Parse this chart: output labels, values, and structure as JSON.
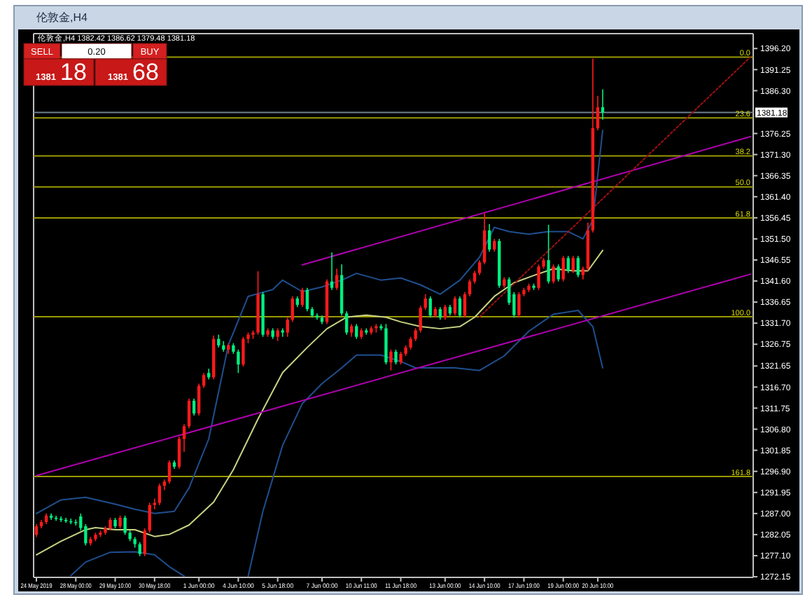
{
  "chart_data": {
    "type": "candlestick",
    "title": "伦敦金,H4",
    "subtitle": "伦敦金,H4  1382.42 1386.62 1379.48 1381.18",
    "categories": [
      "24 May 2019",
      null,
      null,
      null,
      null,
      null,
      null,
      null,
      "28 May 00:00",
      null,
      null,
      null,
      null,
      null,
      null,
      null,
      "29 May 10:00",
      null,
      null,
      null,
      null,
      null,
      null,
      null,
      "30 May 18:00",
      null,
      null,
      null,
      null,
      null,
      null,
      null,
      null,
      "1 Jun 00:00",
      null,
      null,
      null,
      null,
      null,
      null,
      null,
      "4 Jun 10:00",
      null,
      null,
      null,
      null,
      null,
      null,
      null,
      "5 Jun 18:00",
      null,
      null,
      null,
      null,
      null,
      null,
      null,
      null,
      "7 Jun 00:00",
      null,
      null,
      null,
      null,
      null,
      null,
      null,
      "10 Jun 11:00",
      null,
      null,
      null,
      null,
      null,
      null,
      null,
      "11 Jun 18:00",
      null,
      null,
      null,
      null,
      null,
      null,
      null,
      null,
      "13 Jun 00:00",
      null,
      null,
      null,
      null,
      null,
      null,
      null,
      "14 Jun 10:00",
      null,
      null,
      null,
      null,
      null,
      null,
      null,
      "17 Jun 19:00",
      null,
      null,
      null,
      null,
      null,
      null,
      null,
      "19 Jun 00:00",
      null,
      null,
      null,
      null,
      null,
      null,
      "20 Jun 10:00",
      null,
      null,
      null,
      null,
      null,
      null,
      null,
      null,
      null,
      null,
      null,
      null,
      null,
      null,
      null,
      null,
      null,
      null,
      null,
      null,
      null,
      null,
      null,
      null,
      null,
      null,
      null,
      null,
      null,
      null,
      null
    ],
    "ohlc": [
      [
        1282.0,
        1284.5,
        1281.5,
        1284.0
      ],
      [
        1284.0,
        1285.5,
        1283.5,
        1285.0
      ],
      [
        1285.0,
        1287.0,
        1284.5,
        1286.5
      ],
      [
        1286.5,
        1287.0,
        1285.5,
        1286.0
      ],
      [
        1286.0,
        1286.5,
        1285.3,
        1285.8
      ],
      [
        1285.8,
        1286.3,
        1285.0,
        1285.5
      ],
      [
        1285.5,
        1286.0,
        1284.8,
        1285.2
      ],
      [
        1285.2,
        1285.8,
        1284.5,
        1285.0
      ],
      [
        1285.0,
        1285.6,
        1284.2,
        1284.8
      ],
      [
        1286.3,
        1287.0,
        1283.0,
        1283.6
      ],
      [
        1284.0,
        1284.5,
        1279.5,
        1280.0
      ],
      [
        1280.0,
        1281.5,
        1279.5,
        1281.0
      ],
      [
        1281.0,
        1282.5,
        1280.5,
        1282.0
      ],
      [
        1282.0,
        1283.0,
        1281.5,
        1282.5
      ],
      [
        1282.5,
        1284.0,
        1282.0,
        1283.5
      ],
      [
        1283.5,
        1286.0,
        1283.0,
        1285.5
      ],
      [
        1285.5,
        1286.0,
        1283.5,
        1284.0
      ],
      [
        1284.0,
        1286.5,
        1283.5,
        1286.0
      ],
      [
        1286.0,
        1286.5,
        1282.0,
        1282.5
      ],
      [
        1282.5,
        1283.0,
        1280.5,
        1281.0
      ],
      [
        1281.0,
        1281.5,
        1279.0,
        1279.8
      ],
      [
        1279.8,
        1280.3,
        1277.0,
        1277.5
      ],
      [
        1277.5,
        1283.5,
        1277.0,
        1283.0
      ],
      [
        1283.0,
        1289.5,
        1282.5,
        1289.0
      ],
      [
        1289.0,
        1290.5,
        1288.0,
        1289.5
      ],
      [
        1289.5,
        1294.0,
        1289.0,
        1293.5
      ],
      [
        1293.5,
        1295.0,
        1292.5,
        1294.5
      ],
      [
        1294.5,
        1299.5,
        1294.0,
        1299.0
      ],
      [
        1299.0,
        1299.5,
        1297.5,
        1298.0
      ],
      [
        1298.0,
        1305.0,
        1297.5,
        1304.5
      ],
      [
        1304.5,
        1308.0,
        1301.5,
        1307.5
      ],
      [
        1307.5,
        1314.0,
        1307.0,
        1313.5
      ],
      [
        1313.5,
        1314.0,
        1310.0,
        1310.5
      ],
      [
        1310.5,
        1317.5,
        1310.0,
        1317.0
      ],
      [
        1317.0,
        1320.0,
        1316.5,
        1319.5
      ],
      [
        1320.0,
        1321.0,
        1318.5,
        1319.0
      ],
      [
        1319.0,
        1328.8,
        1318.5,
        1328.0
      ],
      [
        1328.0,
        1329.0,
        1326.0,
        1326.5
      ],
      [
        1326.5,
        1327.5,
        1325.0,
        1325.5
      ],
      [
        1325.5,
        1327.0,
        1324.5,
        1326.5
      ],
      [
        1326.5,
        1327.0,
        1324.5,
        1325.0
      ],
      [
        1325.0,
        1325.5,
        1320.0,
        1322.0
      ],
      [
        1322.0,
        1328.5,
        1321.5,
        1328.0
      ],
      [
        1328.0,
        1329.5,
        1327.0,
        1329.0
      ],
      [
        1329.0,
        1330.0,
        1328.0,
        1329.5
      ],
      [
        1329.5,
        1343.9,
        1329.0,
        1338.5
      ],
      [
        1338.5,
        1339.0,
        1328.5,
        1329.0
      ],
      [
        1329.0,
        1330.5,
        1328.5,
        1330.0
      ],
      [
        1330.0,
        1330.5,
        1328.0,
        1328.5
      ],
      [
        1328.5,
        1330.5,
        1327.5,
        1330.0
      ],
      [
        1330.0,
        1330.5,
        1328.5,
        1329.5
      ],
      [
        1329.5,
        1333.0,
        1328.5,
        1332.5
      ],
      [
        1332.5,
        1338.0,
        1332.0,
        1337.5
      ],
      [
        1337.5,
        1338.0,
        1335.5,
        1336.0
      ],
      [
        1336.0,
        1340.0,
        1335.5,
        1339.5
      ],
      [
        1339.5,
        1340.0,
        1334.5,
        1335.0
      ],
      [
        1335.0,
        1335.5,
        1333.0,
        1333.5
      ],
      [
        1333.5,
        1334.0,
        1332.5,
        1333.0
      ],
      [
        1333.0,
        1333.5,
        1331.5,
        1332.0
      ],
      [
        1332.0,
        1342.0,
        1331.5,
        1341.5
      ],
      [
        1341.5,
        1348.3,
        1339.5,
        1340.0
      ],
      [
        1340.0,
        1344.5,
        1339.5,
        1343.0
      ],
      [
        1343.0,
        1345.5,
        1333.5,
        1334.0
      ],
      [
        1334.0,
        1334.5,
        1329.0,
        1329.5
      ],
      [
        1329.5,
        1331.5,
        1328.5,
        1331.0
      ],
      [
        1331.0,
        1331.5,
        1328.0,
        1328.5
      ],
      [
        1328.5,
        1330.5,
        1328.0,
        1330.0
      ],
      [
        1330.0,
        1330.5,
        1329.0,
        1329.5
      ],
      [
        1329.5,
        1331.0,
        1329.0,
        1330.5
      ],
      [
        1330.5,
        1331.5,
        1329.5,
        1331.0
      ],
      [
        1331.0,
        1331.5,
        1330.0,
        1330.5
      ],
      [
        1330.5,
        1331.5,
        1322.0,
        1322.5
      ],
      [
        1322.5,
        1325.5,
        1320.6,
        1325.0
      ],
      [
        1325.0,
        1325.5,
        1322.0,
        1322.5
      ],
      [
        1322.5,
        1325.0,
        1322.0,
        1324.5
      ],
      [
        1324.5,
        1326.5,
        1324.0,
        1326.0
      ],
      [
        1326.0,
        1328.5,
        1325.5,
        1328.0
      ],
      [
        1328.0,
        1330.5,
        1327.5,
        1330.0
      ],
      [
        1330.0,
        1335.8,
        1329.5,
        1335.3
      ],
      [
        1335.3,
        1338.5,
        1334.8,
        1337.5
      ],
      [
        1337.5,
        1338.0,
        1333.0,
        1333.5
      ],
      [
        1333.5,
        1335.5,
        1333.0,
        1335.0
      ],
      [
        1335.0,
        1335.5,
        1332.5,
        1333.0
      ],
      [
        1333.0,
        1336.0,
        1332.5,
        1335.5
      ],
      [
        1335.5,
        1336.0,
        1333.5,
        1334.0
      ],
      [
        1334.0,
        1338.0,
        1333.5,
        1337.5
      ],
      [
        1337.5,
        1338.0,
        1333.0,
        1333.5
      ],
      [
        1333.5,
        1339.0,
        1333.0,
        1338.5
      ],
      [
        1338.5,
        1342.0,
        1338.0,
        1341.5
      ],
      [
        1341.5,
        1344.0,
        1341.0,
        1343.5
      ],
      [
        1343.5,
        1346.5,
        1343.0,
        1346.0
      ],
      [
        1346.0,
        1357.5,
        1345.5,
        1353.5
      ],
      [
        1353.5,
        1355.0,
        1348.5,
        1349.0
      ],
      [
        1349.0,
        1351.5,
        1348.5,
        1351.0
      ],
      [
        1351.0,
        1351.5,
        1340.0,
        1340.5
      ],
      [
        1340.5,
        1342.5,
        1340.0,
        1342.0
      ],
      [
        1342.0,
        1342.5,
        1336.0,
        1336.5
      ],
      [
        1338.5,
        1339.0,
        1333.0,
        1333.6
      ],
      [
        1333.6,
        1339.0,
        1333.0,
        1338.5
      ],
      [
        1338.5,
        1340.0,
        1338.0,
        1339.5
      ],
      [
        1339.5,
        1341.0,
        1339.0,
        1340.5
      ],
      [
        1340.5,
        1341.0,
        1339.5,
        1340.0
      ],
      [
        1340.0,
        1345.5,
        1339.5,
        1345.0
      ],
      [
        1345.0,
        1347.0,
        1344.5,
        1346.5
      ],
      [
        1346.5,
        1354.8,
        1341.0,
        1341.5
      ],
      [
        1341.5,
        1345.5,
        1341.0,
        1345.0
      ],
      [
        1345.0,
        1345.5,
        1341.5,
        1342.0
      ],
      [
        1342.0,
        1347.5,
        1341.5,
        1347.0
      ],
      [
        1347.0,
        1347.5,
        1343.5,
        1344.0
      ],
      [
        1344.0,
        1347.5,
        1343.5,
        1347.0
      ],
      [
        1347.0,
        1347.5,
        1342.5,
        1343.0
      ],
      [
        1343.0,
        1345.0,
        1342.0,
        1344.5
      ],
      [
        1344.5,
        1355.3,
        1344.0,
        1353.5
      ],
      [
        1353.5,
        1393.8,
        1353.0,
        1377.5
      ],
      [
        1377.5,
        1385.1,
        1377.0,
        1382.4
      ],
      [
        1382.42,
        1386.62,
        1379.48,
        1381.18
      ],
      null,
      null,
      null,
      null,
      null,
      null,
      null,
      null,
      null,
      null,
      null,
      null,
      null,
      null,
      null,
      null,
      null,
      null,
      null,
      null,
      null,
      null,
      null,
      null,
      null,
      null,
      null,
      null,
      null,
      null
    ],
    "series": [
      {
        "type": "line",
        "color": "#c8d282",
        "values": [
          1277.3,
          null,
          null,
          null,
          null,
          1280.5,
          null,
          null,
          null,
          null,
          1283.2,
          null,
          1283.7,
          null,
          null,
          null,
          1283.2,
          null,
          null,
          null,
          1283.2,
          null,
          null,
          null,
          1281.6,
          null,
          null,
          1282.1,
          null,
          null,
          null,
          1284.3,
          null,
          null,
          null,
          null,
          1289.7,
          null,
          null,
          null,
          1297.3,
          null,
          null,
          null,
          null,
          1309.2,
          null,
          null,
          null,
          null,
          1320.1,
          null,
          null,
          null,
          null,
          1326.0,
          null,
          null,
          null,
          1330.4,
          null,
          null,
          null,
          1333.1,
          null,
          null,
          null,
          1333.6,
          null,
          null,
          null,
          1333.1,
          null,
          null,
          1332.0,
          null,
          null,
          null,
          1330.9,
          null,
          null,
          null,
          1330.4,
          null,
          null,
          null,
          1330.9,
          null,
          null,
          1333.1,
          null,
          null,
          null,
          1338.0,
          null,
          null,
          null,
          1341.2,
          null,
          null,
          null,
          1342.9,
          null,
          null,
          null,
          1344.5,
          null,
          null,
          null,
          1344.0,
          null,
          null,
          1344.0,
          null,
          null,
          1348.8,
          null,
          null,
          null,
          null,
          null,
          null,
          null,
          null,
          null,
          null,
          null,
          null,
          null,
          null,
          null,
          null,
          null,
          null,
          null,
          null,
          null,
          null,
          null,
          null,
          null,
          null,
          null,
          null,
          null,
          null
        ]
      },
      {
        "type": "line",
        "color": "#1f4f8f",
        "values": [
          1287.0,
          null,
          null,
          null,
          null,
          1290.2,
          null,
          null,
          null,
          null,
          1290.8,
          null,
          null,
          null,
          null,
          null,
          1289.2,
          null,
          null,
          null,
          1288.0,
          null,
          null,
          null,
          1287.0,
          null,
          null,
          null,
          1287.5,
          null,
          null,
          1293.0,
          null,
          null,
          null,
          1304.5,
          null,
          null,
          null,
          1326.6,
          null,
          null,
          null,
          1338.0,
          null,
          null,
          null,
          null,
          1339.6,
          null,
          1341.8,
          null,
          null,
          null,
          1339.1,
          null,
          null,
          null,
          1340.2,
          null,
          null,
          null,
          1341.8,
          null,
          null,
          1343.4,
          null,
          null,
          null,
          null,
          1341.8,
          null,
          null,
          null,
          1342.3,
          null,
          null,
          null,
          1340.7,
          null,
          null,
          null,
          1338.5,
          null,
          null,
          null,
          1341.8,
          null,
          null,
          null,
          1347.2,
          null,
          null,
          1354.2,
          null,
          null,
          1353.2,
          null,
          null,
          null,
          1352.6,
          null,
          null,
          null,
          1353.2,
          null,
          null,
          null,
          1353.2,
          null,
          null,
          1351.5,
          null,
          1355.9,
          null,
          1377.0,
          null,
          null,
          null,
          null,
          null,
          null,
          null,
          null,
          null,
          null,
          null,
          null,
          null,
          null,
          null,
          null,
          null,
          null,
          null,
          null,
          null,
          null,
          null,
          null,
          null,
          null,
          null,
          null,
          null,
          null
        ]
      },
      {
        "type": "line",
        "color": "#1f4f8f",
        "values": [
          null,
          null,
          null,
          null,
          null,
          null,
          null,
          1272.4,
          null,
          null,
          1275.6,
          null,
          null,
          null,
          null,
          1277.9,
          null,
          null,
          null,
          null,
          1278.0,
          null,
          null,
          null,
          1277.3,
          null,
          null,
          1274.5,
          null,
          null,
          1272.3,
          null,
          null,
          null,
          null,
          null,
          null,
          null,
          null,
          null,
          null,
          null,
          null,
          null,
          null,
          null,
          null,
          null,
          null,
          null,
          null,
          null,
          null,
          null,
          null,
          null,
          null,
          null,
          null,
          null,
          null,
          null,
          null,
          null,
          null,
          null,
          null,
          null,
          null,
          null,
          null,
          null,
          null,
          null,
          null,
          null,
          null,
          null,
          null,
          null,
          null,
          null,
          null,
          null,
          null,
          null,
          null,
          null,
          null,
          null,
          null,
          null,
          null,
          null,
          null,
          null,
          null,
          null,
          null,
          null,
          null,
          null,
          null,
          null,
          null,
          null,
          null,
          null,
          null,
          null,
          null,
          null,
          null,
          null,
          null,
          null,
          null,
          null,
          null,
          null,
          null,
          null,
          null,
          null,
          null,
          null,
          null,
          null,
          null,
          null,
          null,
          null,
          null,
          null,
          null,
          null,
          null,
          null,
          null,
          null,
          null,
          null,
          null,
          null,
          null,
          null
        ]
      },
      {
        "type": "line",
        "color": "#1f4f8f",
        "values": [
          null,
          null,
          null,
          null,
          null,
          null,
          null,
          null,
          null,
          null,
          null,
          null,
          null,
          null,
          null,
          null,
          null,
          null,
          null,
          null,
          null,
          null,
          null,
          null,
          null,
          null,
          null,
          null,
          null,
          null,
          null,
          null,
          null,
          null,
          null,
          null,
          null,
          null,
          null,
          null,
          null,
          null,
          null,
          1272.3,
          null,
          null,
          1287.5,
          null,
          null,
          null,
          1303.0,
          null,
          null,
          null,
          1312.8,
          null,
          null,
          null,
          1317.5,
          null,
          null,
          null,
          1321.2,
          null,
          null,
          1324.2,
          null,
          null,
          null,
          null,
          1324.2,
          null,
          null,
          null,
          1322.7,
          null,
          null,
          1321.2,
          null,
          null,
          1321.2,
          null,
          null,
          null,
          null,
          1321.2,
          null,
          null,
          null,
          null,
          1320.6,
          null,
          null,
          null,
          null,
          1324.0,
          null,
          null,
          null,
          null,
          1329.8,
          null,
          null,
          null,
          null,
          1333.8,
          null,
          null,
          null,
          null,
          1334.7,
          null,
          null,
          1330.9,
          null,
          1321.2,
          null,
          null,
          null,
          null,
          null,
          null,
          null,
          null,
          null,
          null,
          null,
          null,
          null,
          null,
          null,
          null,
          null,
          null,
          null,
          null,
          null,
          null,
          null,
          null,
          null,
          null,
          null,
          null,
          null,
          null
        ]
      },
      {
        "type": "line",
        "color": "#b000b0",
        "values": [
          null,
          null,
          null,
          null,
          null,
          null,
          null,
          null,
          null,
          null,
          null,
          null,
          null,
          null,
          null,
          null,
          null,
          null,
          null,
          null,
          null,
          null,
          null,
          null,
          null,
          null,
          null,
          null,
          null,
          null,
          null,
          null,
          null,
          null,
          null,
          null,
          null,
          null,
          null,
          null,
          null,
          null,
          null,
          null,
          null,
          null,
          null,
          null,
          null,
          null,
          null,
          null,
          null,
          null,
          1345.4,
          null,
          null,
          null,
          null,
          null,
          null,
          null,
          null,
          null,
          null,
          null,
          null,
          null,
          null,
          null,
          null,
          null,
          null,
          null,
          null,
          null,
          null,
          null,
          null,
          null,
          null,
          null,
          null,
          null,
          null,
          null,
          null,
          null,
          null,
          null,
          null,
          null,
          null,
          null,
          null,
          null,
          null,
          null,
          null,
          null,
          null,
          null,
          null,
          null,
          null,
          null,
          null,
          null,
          null,
          null,
          null,
          null,
          null,
          null,
          null,
          null,
          null,
          null,
          null,
          null,
          null,
          null,
          null,
          null,
          null,
          null,
          null,
          null,
          null,
          null,
          null,
          null,
          null,
          null,
          null,
          null,
          null,
          null,
          null,
          null,
          null,
          null,
          null,
          null,
          null,
          1375.5
        ]
      },
      {
        "type": "line",
        "color": "#b000b0",
        "values": [
          1295.9,
          null,
          null,
          null,
          null,
          null,
          null,
          null,
          null,
          null,
          null,
          null,
          null,
          null,
          null,
          null,
          null,
          null,
          null,
          null,
          null,
          null,
          null,
          null,
          null,
          null,
          null,
          null,
          null,
          null,
          null,
          null,
          null,
          null,
          null,
          null,
          null,
          null,
          null,
          null,
          null,
          null,
          null,
          null,
          null,
          null,
          null,
          null,
          null,
          null,
          null,
          null,
          null,
          null,
          null,
          null,
          null,
          null,
          null,
          null,
          null,
          null,
          null,
          null,
          null,
          null,
          null,
          null,
          null,
          null,
          null,
          null,
          null,
          null,
          null,
          null,
          null,
          null,
          null,
          null,
          null,
          null,
          null,
          null,
          null,
          null,
          null,
          null,
          null,
          null,
          null,
          null,
          null,
          null,
          null,
          null,
          null,
          null,
          null,
          null,
          null,
          null,
          null,
          null,
          null,
          null,
          null,
          null,
          null,
          null,
          null,
          null,
          null,
          null,
          null,
          null,
          null,
          null,
          null,
          null,
          null,
          null,
          null,
          null,
          null,
          null,
          null,
          null,
          null,
          null,
          null,
          null,
          null,
          null,
          null,
          null,
          null,
          null,
          null,
          null,
          null,
          null,
          null,
          null,
          null,
          1343.2
        ]
      },
      {
        "type": "line",
        "color": "#a01010",
        "line_style": "dotted",
        "values": [
          null,
          null,
          null,
          null,
          null,
          null,
          null,
          null,
          null,
          null,
          null,
          null,
          null,
          null,
          null,
          null,
          null,
          null,
          null,
          null,
          null,
          null,
          null,
          null,
          null,
          null,
          null,
          null,
          null,
          null,
          null,
          null,
          null,
          null,
          null,
          null,
          null,
          null,
          null,
          null,
          null,
          null,
          null,
          null,
          null,
          null,
          null,
          null,
          null,
          null,
          null,
          null,
          null,
          null,
          null,
          null,
          null,
          null,
          null,
          null,
          null,
          null,
          null,
          null,
          null,
          null,
          null,
          null,
          null,
          null,
          null,
          null,
          null,
          null,
          null,
          null,
          null,
          null,
          null,
          null,
          null,
          null,
          null,
          null,
          null,
          null,
          null,
          null,
          null,
          null,
          1333.2,
          null,
          null,
          null,
          null,
          null,
          null,
          null,
          null,
          null,
          null,
          null,
          null,
          null,
          null,
          null,
          null,
          null,
          null,
          null,
          null,
          null,
          null,
          null,
          null,
          null,
          null,
          null,
          null,
          null,
          null,
          null,
          null,
          null,
          null,
          null,
          null,
          null,
          null,
          null,
          null,
          null,
          null,
          null,
          null,
          null,
          null,
          null,
          null,
          null,
          null,
          null,
          null,
          null,
          null,
          1394.2
        ]
      }
    ],
    "ylim": [
      1272.0,
      1399.7
    ],
    "yticks": [
      {
        "value": 1396.2,
        "label": "1396.20"
      },
      {
        "value": 1391.25,
        "label": "1391.25"
      },
      {
        "value": 1386.3,
        "label": "1386.30"
      },
      {
        "value": 1376.25,
        "label": "1376.25"
      },
      {
        "value": 1371.3,
        "label": "1371.30"
      },
      {
        "value": 1366.35,
        "label": "1366.35"
      },
      {
        "value": 1361.4,
        "label": "1361.40"
      },
      {
        "value": 1356.45,
        "label": "1356.45"
      },
      {
        "value": 1351.5,
        "label": "1351.50"
      },
      {
        "value": 1346.55,
        "label": "1346.55"
      },
      {
        "value": 1341.6,
        "label": "1341.60"
      },
      {
        "value": 1336.65,
        "label": "1336.65"
      },
      {
        "value": 1331.7,
        "label": "1331.70"
      },
      {
        "value": 1326.75,
        "label": "1326.75"
      },
      {
        "value": 1321.65,
        "label": "1321.65"
      },
      {
        "value": 1316.7,
        "label": "1316.70"
      },
      {
        "value": 1311.75,
        "label": "1311.75"
      },
      {
        "value": 1306.8,
        "label": "1306.80"
      },
      {
        "value": 1301.85,
        "label": "1301.85"
      },
      {
        "value": 1296.9,
        "label": "1296.90"
      },
      {
        "value": 1291.95,
        "label": "1291.95"
      },
      {
        "value": 1287.0,
        "label": "1287.00"
      },
      {
        "value": 1282.05,
        "label": "1282.05"
      },
      {
        "value": 1277.1,
        "label": "1277.10"
      },
      {
        "value": 1272.15,
        "label": "1272.15"
      }
    ],
    "ref_lines": [
      {
        "axis": "y",
        "value": 1381.18,
        "label": "1381.18",
        "color": "#708090"
      },
      {
        "axis": "y",
        "value": 1394.2,
        "color": "#9a9a00"
      },
      {
        "axis": "y",
        "value": 1379.9,
        "color": "#9a9a00"
      },
      {
        "axis": "y",
        "value": 1371.0,
        "color": "#9a9a00"
      },
      {
        "axis": "y",
        "value": 1363.7,
        "color": "#9a9a00"
      },
      {
        "axis": "y",
        "value": 1356.4,
        "color": "#9a9a00"
      },
      {
        "axis": "y",
        "value": 1333.2,
        "color": "#9a9a00"
      },
      {
        "axis": "y",
        "value": 1295.7,
        "color": "#9a9a00"
      }
    ],
    "annotations": [
      "SELL",
      "0.20",
      "BUY",
      "1381 18",
      "1381 68",
      {
        "text": "0.0",
        "y": 1394.2
      },
      {
        "text": "23.6",
        "y": 1379.9
      },
      {
        "text": "38.2",
        "y": 1371.0
      },
      {
        "text": "50.0",
        "y": 1363.7
      },
      {
        "text": "61.8",
        "y": 1356.4
      },
      {
        "text": "100.0",
        "y": 1333.2
      },
      {
        "text": "161.8",
        "y": 1295.7
      }
    ],
    "grid": false
  }
}
